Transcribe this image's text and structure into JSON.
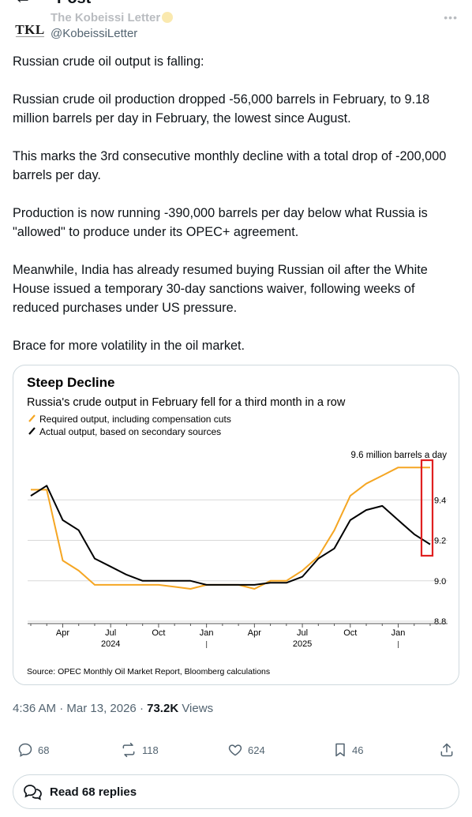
{
  "header": {
    "back_icon": "arrow-left-icon",
    "title": "Post"
  },
  "author": {
    "name": "The Kobeissi Letter",
    "handle": "@KobeissiLetter",
    "avatar_text": "TKL"
  },
  "tweet": {
    "paragraphs": [
      "Russian crude oil output is falling:",
      "Russian crude oil production dropped -56,000 barrels in February, to 9.18 million barrels per day in February, the lowest since August.",
      "This marks the 3rd consecutive monthly decline with a total drop of -200,000 barrels per day.",
      "Production is now running -390,000 barrels per day below what Russia is \"allowed\" to produce under its OPEC+ agreement.",
      "Meanwhile, India has already resumed buying Russian oil after the White House issued a temporary 30-day sanctions waiver, following weeks of reduced purchases under US pressure.",
      "Brace for more volatility in the oil market."
    ]
  },
  "chart_data": {
    "type": "line",
    "title": "Steep Decline",
    "subtitle": "Russia's crude output in February fell for a third month in a row",
    "legend": [
      {
        "label": "Required output, including compensation cuts",
        "color": "#f5a623"
      },
      {
        "label": "Actual output, based on secondary sources",
        "color": "#000000"
      }
    ],
    "unit_label": "9.6 million barrels a day",
    "y_ticks": [
      "9.4",
      "9.2",
      "9.0",
      "8.8"
    ],
    "y_tick_values": [
      9.4,
      9.2,
      9.0,
      8.8
    ],
    "ylim": [
      8.8,
      9.6
    ],
    "x_tick_labels": [
      "Apr",
      "Jul",
      "Oct",
      "Jan",
      "Apr",
      "Jul",
      "Oct",
      "Jan"
    ],
    "x_tick_positions": [
      3,
      6,
      9,
      12,
      15,
      18,
      21,
      24
    ],
    "year_labels": [
      {
        "label": "2024",
        "position": 6
      },
      {
        "label": "2025",
        "position": 18
      }
    ],
    "year_markers": [
      12,
      24
    ],
    "x": [
      1,
      2,
      3,
      4,
      5,
      6,
      7,
      8,
      9,
      10,
      11,
      12,
      13,
      14,
      15,
      16,
      17,
      18,
      19,
      20,
      21,
      22,
      23,
      24,
      25,
      26
    ],
    "series": [
      {
        "name": "Required output, including compensation cuts",
        "color": "#f5a623",
        "values": [
          9.45,
          9.45,
          9.1,
          9.05,
          8.98,
          8.98,
          8.98,
          8.98,
          8.98,
          8.97,
          8.96,
          8.98,
          8.98,
          8.98,
          8.96,
          9.0,
          9.0,
          9.05,
          9.12,
          9.25,
          9.42,
          9.48,
          9.52,
          9.56,
          9.56,
          9.56
        ]
      },
      {
        "name": "Actual output, based on secondary sources",
        "color": "#000000",
        "values": [
          9.42,
          9.47,
          9.3,
          9.25,
          9.11,
          9.07,
          9.03,
          9.0,
          9.0,
          9.0,
          9.0,
          8.98,
          8.98,
          8.98,
          8.98,
          8.99,
          8.99,
          9.02,
          9.11,
          9.16,
          9.3,
          9.35,
          9.37,
          9.3,
          9.23,
          9.18
        ]
      }
    ],
    "highlight_box_color": "#e02020",
    "source": "Source: OPEC Monthly Oil Market Report, Bloomberg calculations"
  },
  "meta": {
    "time": "4:36 AM",
    "separator": " · ",
    "date": "Mar 13, 2026",
    "views_count": "73.2K",
    "views_label": " Views"
  },
  "actions": {
    "reply_count": "68",
    "repost_count": "118",
    "like_count": "624",
    "bookmark_count": "46"
  },
  "replies_button": {
    "label": "Read 68 replies"
  },
  "colors": {
    "orange": "#f5a623",
    "black": "#000000",
    "gray_text": "#536471",
    "border": "#cfd9de",
    "highlight": "#e02020"
  }
}
